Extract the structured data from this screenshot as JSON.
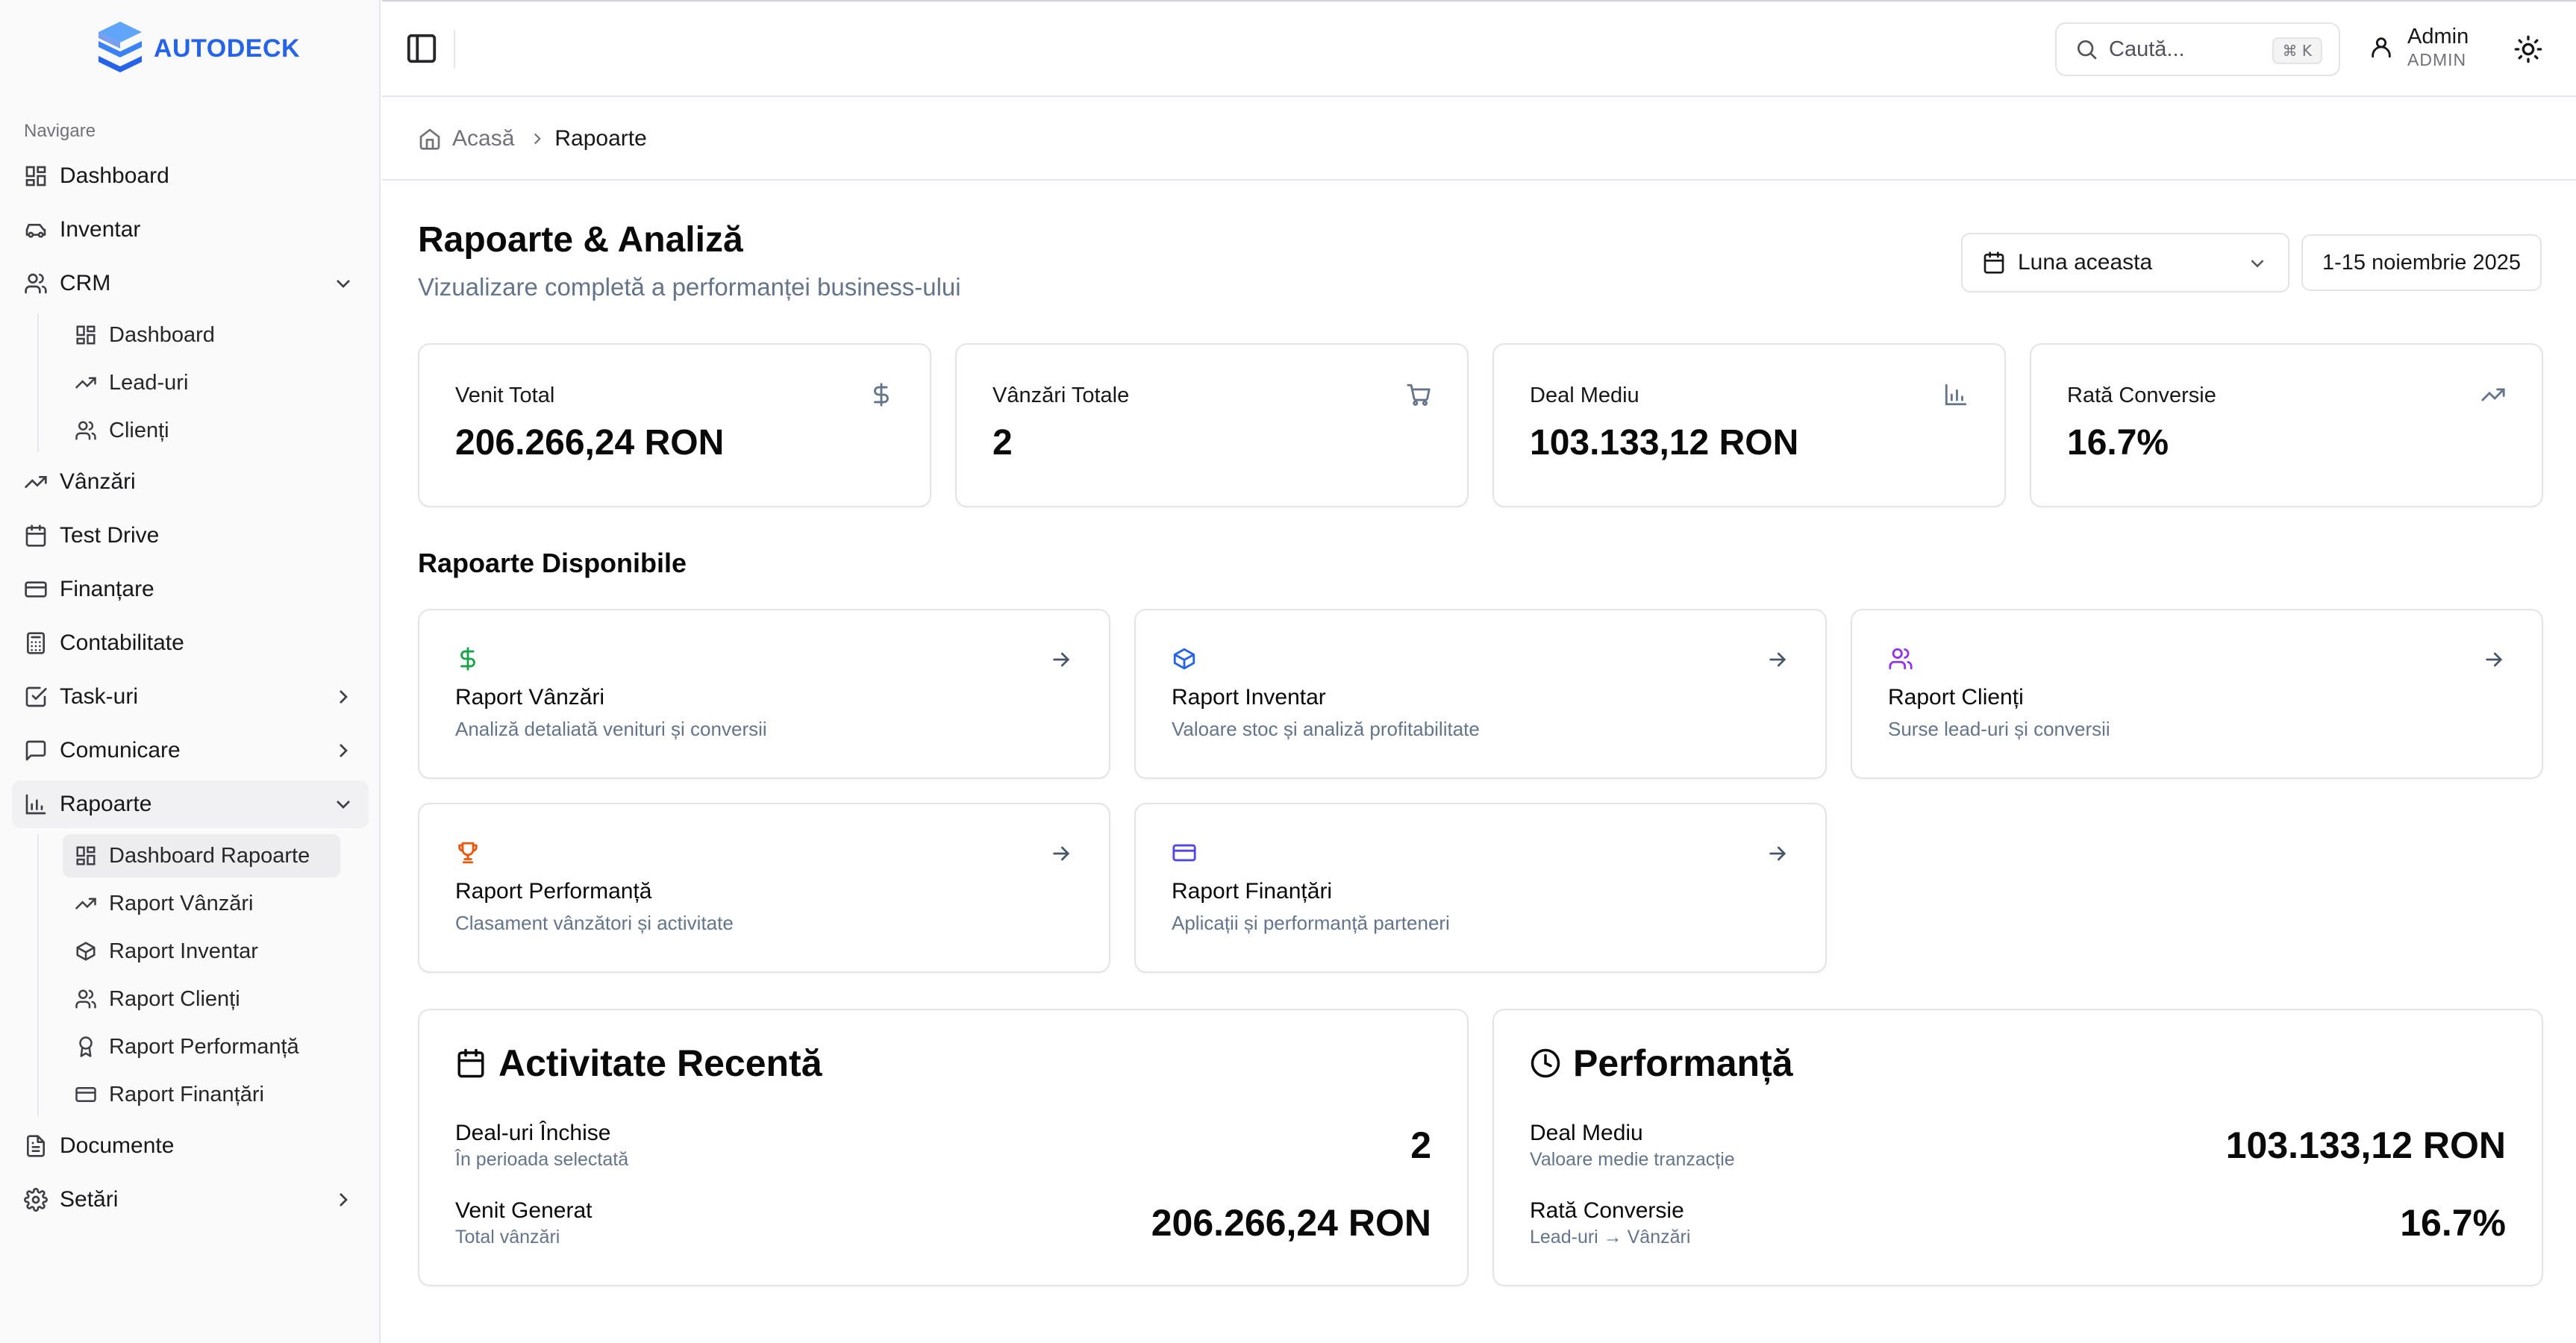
{
  "app": {
    "logo_text": "AUTODECK",
    "brand_color": "#2563eb"
  },
  "sidebar": {
    "heading": "Navigare",
    "items": [
      {
        "label": "Dashboard",
        "icon": "grid-icon"
      },
      {
        "label": "Inventar",
        "icon": "car-icon"
      },
      {
        "label": "CRM",
        "icon": "users-icon",
        "expanded": true,
        "children": [
          {
            "label": "Dashboard",
            "icon": "grid-icon"
          },
          {
            "label": "Lead-uri",
            "icon": "trending-up-icon"
          },
          {
            "label": "Clienți",
            "icon": "users-icon"
          }
        ]
      },
      {
        "label": "Vânzări",
        "icon": "trending-up-icon"
      },
      {
        "label": "Test Drive",
        "icon": "calendar-icon"
      },
      {
        "label": "Finanțare",
        "icon": "credit-card-icon"
      },
      {
        "label": "Contabilitate",
        "icon": "calculator-icon"
      },
      {
        "label": "Task-uri",
        "icon": "check-square-icon",
        "collapsed": true
      },
      {
        "label": "Comunicare",
        "icon": "message-icon",
        "collapsed": true
      },
      {
        "label": "Rapoarte",
        "icon": "bar-chart-icon",
        "expanded": true,
        "children": [
          {
            "label": "Dashboard Rapoarte",
            "icon": "grid-icon",
            "active": true
          },
          {
            "label": "Raport Vânzări",
            "icon": "trending-up-icon"
          },
          {
            "label": "Raport Inventar",
            "icon": "package-icon"
          },
          {
            "label": "Raport Clienți",
            "icon": "users-icon"
          },
          {
            "label": "Raport Performanță",
            "icon": "award-icon"
          },
          {
            "label": "Raport Finanțări",
            "icon": "credit-card-icon"
          }
        ]
      },
      {
        "label": "Documente",
        "icon": "file-icon"
      },
      {
        "label": "Setări",
        "icon": "gear-icon",
        "collapsed": true
      }
    ]
  },
  "header": {
    "search_placeholder": "Caută...",
    "search_shortcut": "⌘ K",
    "user_name": "Admin",
    "user_role": "ADMIN"
  },
  "breadcrumb": {
    "home": "Acasă",
    "current": "Rapoarte"
  },
  "page": {
    "title": "Rapoarte & Analiză",
    "subtitle": "Vizualizare completă a performanței business-ului",
    "period_value": "Luna aceasta",
    "date_range": "1-15 noiembrie 2025"
  },
  "kpis": [
    {
      "label": "Venit Total",
      "value": "206.266,24 RON",
      "icon": "dollar-icon"
    },
    {
      "label": "Vânzări Totale",
      "value": "2",
      "icon": "cart-icon"
    },
    {
      "label": "Deal Mediu",
      "value": "103.133,12 RON",
      "icon": "bar-chart-icon"
    },
    {
      "label": "Rată Conversie",
      "value": "16.7%",
      "icon": "trending-up-icon"
    }
  ],
  "reports": {
    "title": "Rapoarte Disponibile",
    "items": [
      {
        "title": "Raport Vânzări",
        "desc": "Analiză detaliată venituri și conversii",
        "icon": "dollar-icon",
        "color": "#16a34a"
      },
      {
        "title": "Raport Inventar",
        "desc": "Valoare stoc și analiză profitabilitate",
        "icon": "package-icon",
        "color": "#2563eb"
      },
      {
        "title": "Raport Clienți",
        "desc": "Surse lead-uri și conversii",
        "icon": "users-icon",
        "color": "#9333ea"
      },
      {
        "title": "Raport Performanță",
        "desc": "Clasament vânzători și activitate",
        "icon": "trophy-icon",
        "color": "#ea580c"
      },
      {
        "title": "Raport Finanțări",
        "desc": "Aplicații și performanță parteneri",
        "icon": "credit-card-icon",
        "color": "#4f46e5"
      }
    ]
  },
  "activity": {
    "title": "Activitate Recentă",
    "rows": [
      {
        "label": "Deal-uri Închise",
        "sub": "În perioada selectată",
        "value": "2"
      },
      {
        "label": "Venit Generat",
        "sub": "Total vânzări",
        "value": "206.266,24 RON"
      }
    ]
  },
  "performance": {
    "title": "Performanță",
    "rows": [
      {
        "label": "Deal Mediu",
        "sub": "Valoare medie tranzacție",
        "value": "103.133,12 RON"
      },
      {
        "label": "Rată Conversie",
        "sub": "Lead-uri → Vânzări",
        "value": "16.7%"
      }
    ]
  }
}
